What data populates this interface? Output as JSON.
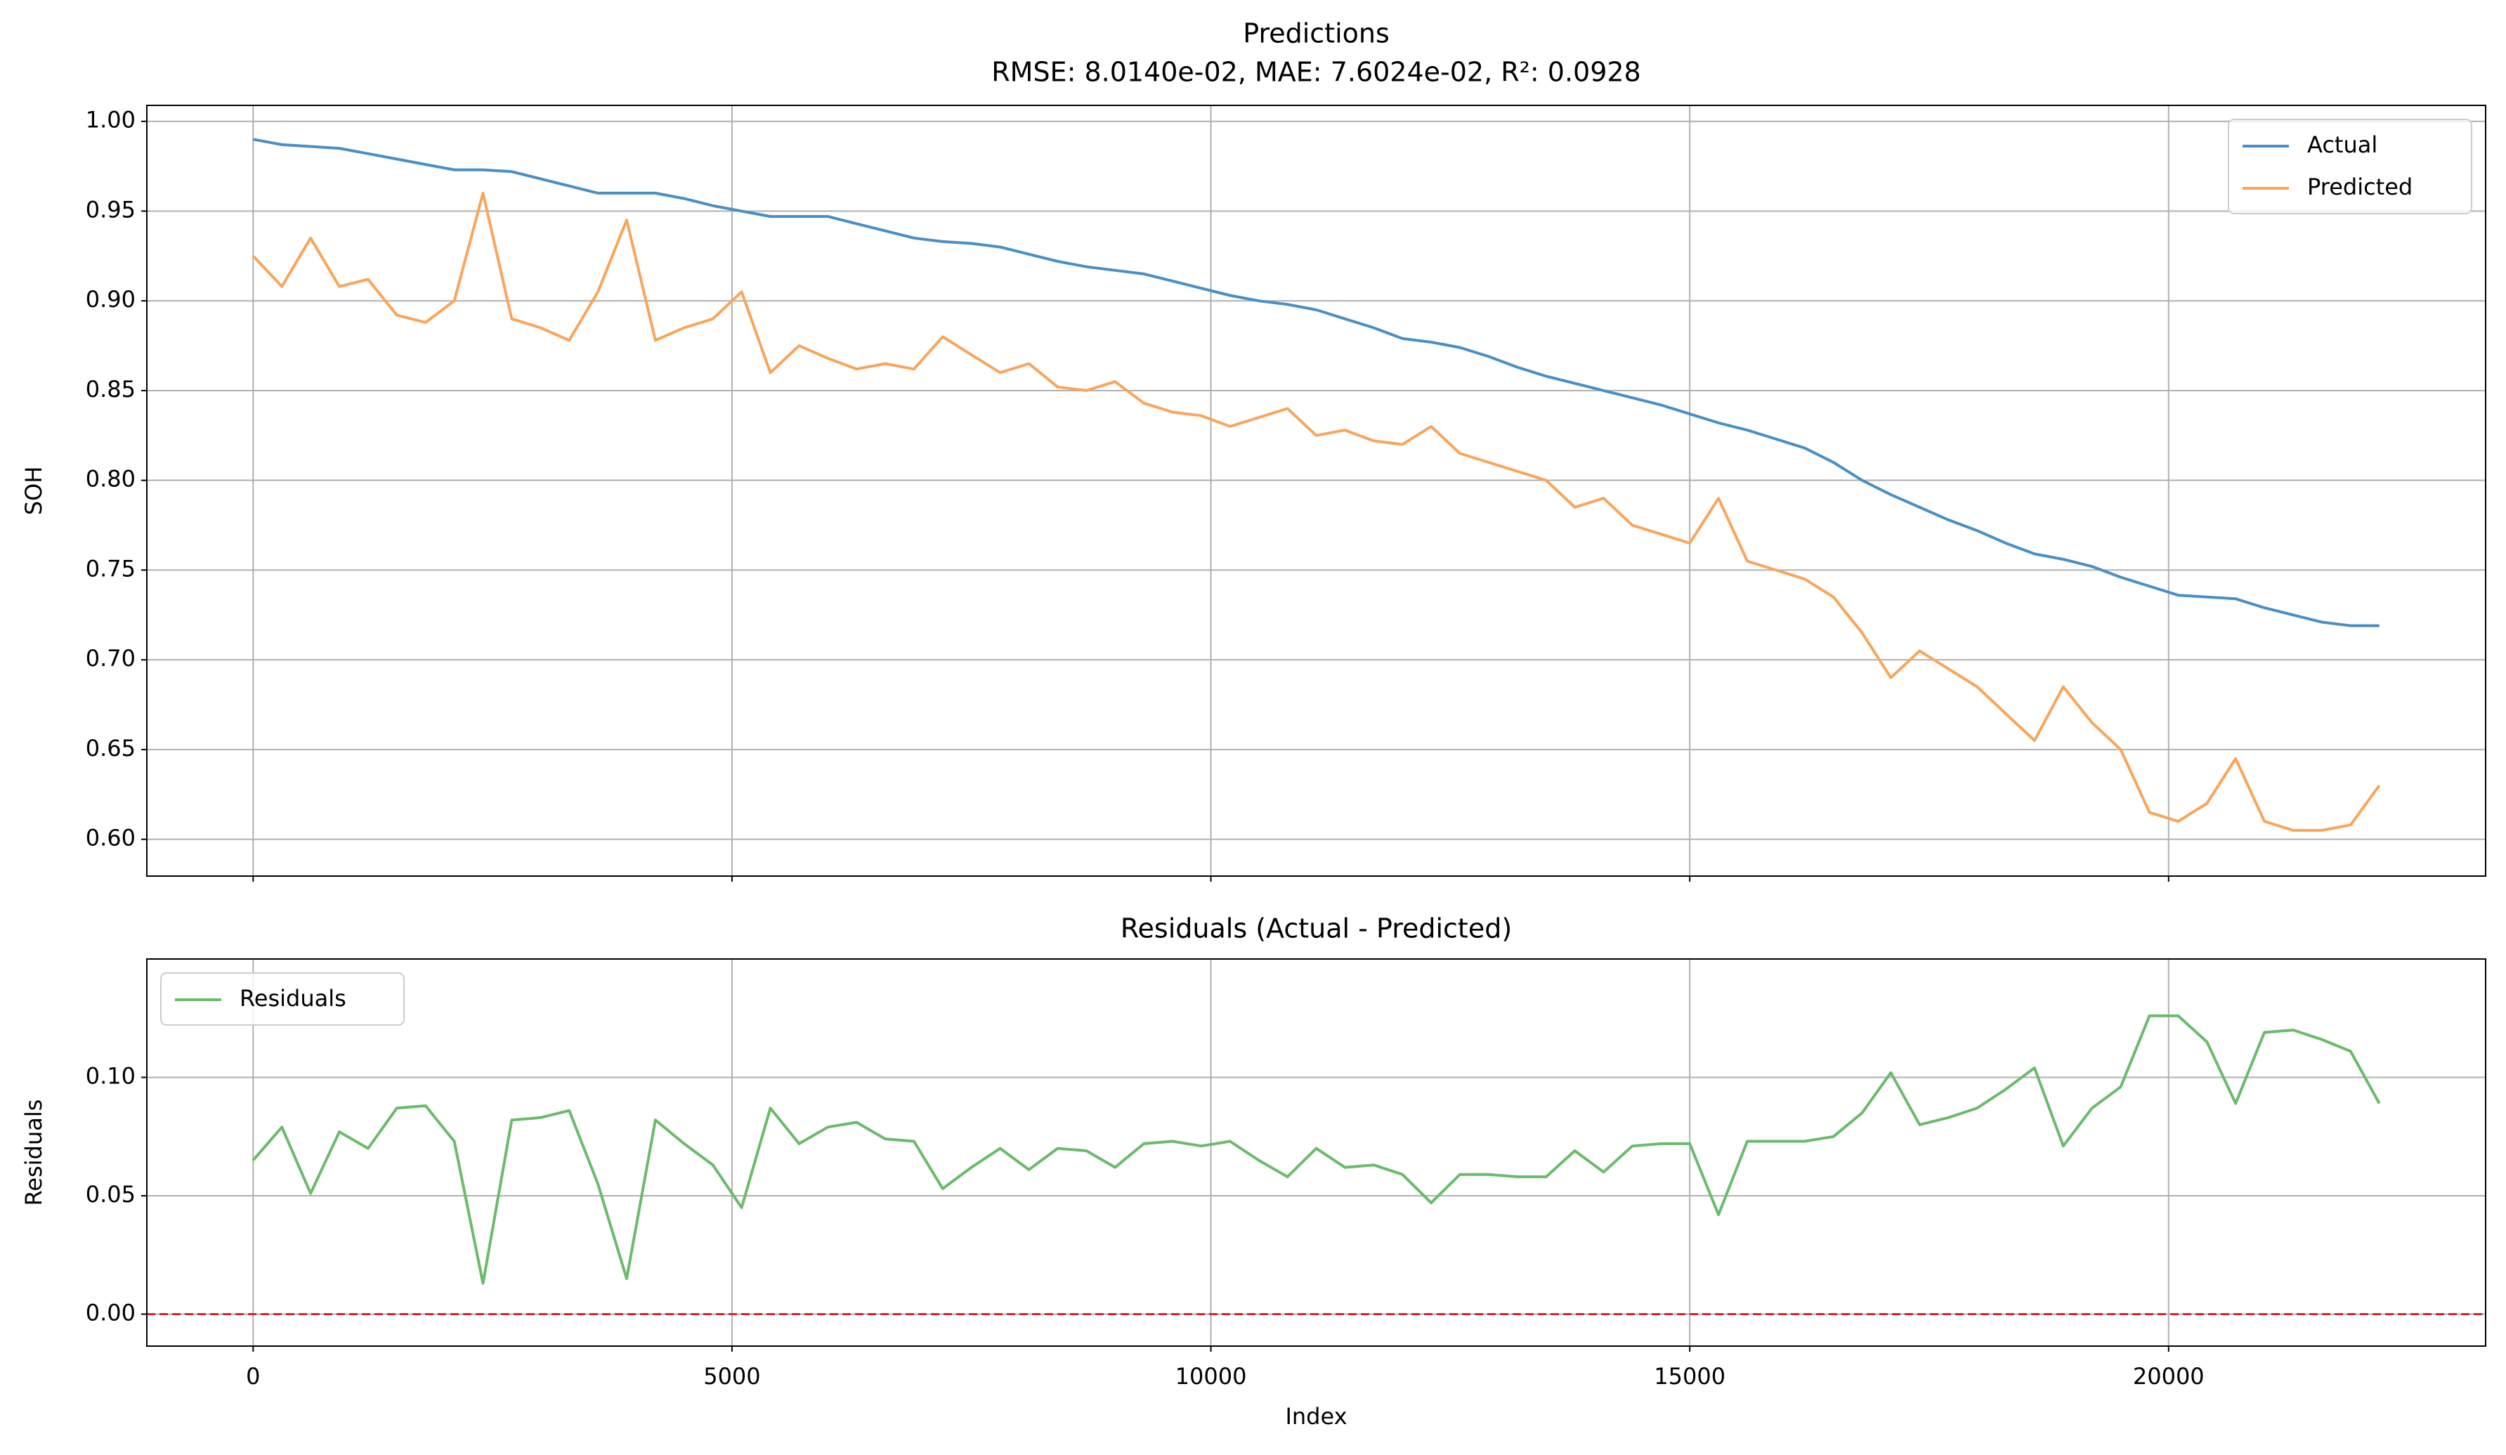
{
  "chart_data": [
    {
      "type": "line",
      "title": "Predictions",
      "subtitle": "RMSE: 8.0140e-02, MAE: 7.6024e-02, R²: 0.0928",
      "y_label": "SOH",
      "x": [
        0,
        300,
        600,
        900,
        1200,
        1500,
        1800,
        2100,
        2400,
        2700,
        3000,
        3300,
        3600,
        3900,
        4200,
        4500,
        4800,
        5100,
        5400,
        5700,
        6000,
        6300,
        6600,
        6900,
        7200,
        7500,
        7800,
        8100,
        8400,
        8700,
        9000,
        9300,
        9600,
        9900,
        10200,
        10500,
        10800,
        11100,
        11400,
        11700,
        12000,
        12300,
        12600,
        12900,
        13200,
        13500,
        13800,
        14100,
        14400,
        14700,
        15000,
        15300,
        15600,
        15900,
        16200,
        16500,
        16800,
        17100,
        17400,
        17700,
        18000,
        18300,
        18600,
        18900,
        19200,
        19500,
        19800,
        20100,
        20400,
        20700,
        21000,
        21300,
        21600,
        21900,
        22200
      ],
      "series": [
        {
          "name": "Actual",
          "color": "#4a8fc4",
          "values": [
            0.99,
            0.987,
            0.986,
            0.985,
            0.982,
            0.979,
            0.976,
            0.973,
            0.973,
            0.972,
            0.968,
            0.964,
            0.96,
            0.96,
            0.96,
            0.957,
            0.953,
            0.95,
            0.947,
            0.947,
            0.947,
            0.943,
            0.939,
            0.935,
            0.933,
            0.932,
            0.93,
            0.926,
            0.922,
            0.919,
            0.917,
            0.915,
            0.911,
            0.907,
            0.903,
            0.9,
            0.898,
            0.895,
            0.89,
            0.885,
            0.879,
            0.877,
            0.874,
            0.869,
            0.863,
            0.858,
            0.854,
            0.85,
            0.846,
            0.842,
            0.837,
            0.832,
            0.828,
            0.823,
            0.818,
            0.81,
            0.8,
            0.792,
            0.785,
            0.778,
            0.772,
            0.765,
            0.759,
            0.756,
            0.752,
            0.746,
            0.741,
            0.736,
            0.735,
            0.734,
            0.729,
            0.725,
            0.721,
            0.719,
            0.719
          ]
        },
        {
          "name": "Predicted",
          "color": "#f9a55a",
          "values": [
            0.925,
            0.908,
            0.935,
            0.908,
            0.912,
            0.892,
            0.888,
            0.9,
            0.96,
            0.89,
            0.885,
            0.878,
            0.905,
            0.945,
            0.878,
            0.885,
            0.89,
            0.905,
            0.86,
            0.875,
            0.868,
            0.862,
            0.865,
            0.862,
            0.88,
            0.87,
            0.86,
            0.865,
            0.852,
            0.85,
            0.855,
            0.843,
            0.838,
            0.836,
            0.83,
            0.835,
            0.84,
            0.825,
            0.828,
            0.822,
            0.82,
            0.83,
            0.815,
            0.81,
            0.805,
            0.8,
            0.785,
            0.79,
            0.775,
            0.77,
            0.765,
            0.79,
            0.755,
            0.75,
            0.745,
            0.735,
            0.715,
            0.69,
            0.705,
            0.695,
            0.685,
            0.67,
            0.655,
            0.685,
            0.665,
            0.65,
            0.615,
            0.61,
            0.62,
            0.645,
            0.61,
            0.605,
            0.605,
            0.608,
            0.63
          ]
        }
      ],
      "xlim": [
        -1110,
        23310
      ],
      "xticks": [
        0,
        5000,
        10000,
        15000,
        20000
      ],
      "ylim": [
        0.5795,
        1.0089
      ],
      "yticks": [
        {
          "value": 0.6,
          "label": "0.60"
        },
        {
          "value": 0.65,
          "label": "0.65"
        },
        {
          "value": 0.7,
          "label": "0.70"
        },
        {
          "value": 0.75,
          "label": "0.75"
        },
        {
          "value": 0.8,
          "label": "0.80"
        },
        {
          "value": 0.85,
          "label": "0.85"
        },
        {
          "value": 0.9,
          "label": "0.90"
        },
        {
          "value": 0.95,
          "label": "0.95"
        },
        {
          "value": 1.0,
          "label": "1.00"
        }
      ],
      "grid": true,
      "legend": "upper right"
    },
    {
      "type": "line",
      "title": "Residuals (Actual - Predicted)",
      "x_label": "Index",
      "y_label": "Residuals",
      "x": [
        0,
        300,
        600,
        900,
        1200,
        1500,
        1800,
        2100,
        2400,
        2700,
        3000,
        3300,
        3600,
        3900,
        4200,
        4500,
        4800,
        5100,
        5400,
        5700,
        6000,
        6300,
        6600,
        6900,
        7200,
        7500,
        7800,
        8100,
        8400,
        8700,
        9000,
        9300,
        9600,
        9900,
        10200,
        10500,
        10800,
        11100,
        11400,
        11700,
        12000,
        12300,
        12600,
        12900,
        13200,
        13500,
        13800,
        14100,
        14400,
        14700,
        15000,
        15300,
        15600,
        15900,
        16200,
        16500,
        16800,
        17100,
        17400,
        17700,
        18000,
        18300,
        18600,
        18900,
        19200,
        19500,
        19800,
        20100,
        20400,
        20700,
        21000,
        21300,
        21600,
        21900,
        22200
      ],
      "series": [
        {
          "name": "Residuals",
          "color": "#6bbb6b",
          "values": [
            0.065,
            0.079,
            0.051,
            0.077,
            0.07,
            0.087,
            0.088,
            0.073,
            0.013,
            0.082,
            0.083,
            0.086,
            0.055,
            0.015,
            0.082,
            0.072,
            0.063,
            0.045,
            0.087,
            0.072,
            0.079,
            0.081,
            0.074,
            0.073,
            0.053,
            0.062,
            0.07,
            0.061,
            0.07,
            0.069,
            0.062,
            0.072,
            0.073,
            0.071,
            0.073,
            0.065,
            0.058,
            0.07,
            0.062,
            0.063,
            0.059,
            0.047,
            0.059,
            0.059,
            0.058,
            0.058,
            0.069,
            0.06,
            0.071,
            0.072,
            0.072,
            0.042,
            0.073,
            0.073,
            0.073,
            0.075,
            0.085,
            0.102,
            0.08,
            0.083,
            0.087,
            0.095,
            0.104,
            0.071,
            0.087,
            0.096,
            0.126,
            0.126,
            0.115,
            0.089,
            0.119,
            0.12,
            0.116,
            0.111,
            0.089
          ]
        }
      ],
      "hline": {
        "value": 0,
        "color": "#d62728"
      },
      "xlim": [
        -1110,
        23310
      ],
      "xticks": [
        0,
        5000,
        10000,
        15000,
        20000
      ],
      "ylim": [
        -0.0135,
        0.15
      ],
      "yticks": [
        {
          "value": 0,
          "label": "0.00"
        },
        {
          "value": 0.05,
          "label": "0.05"
        },
        {
          "value": 0.1,
          "label": "0.10"
        }
      ],
      "grid": true,
      "legend": "upper left"
    }
  ]
}
